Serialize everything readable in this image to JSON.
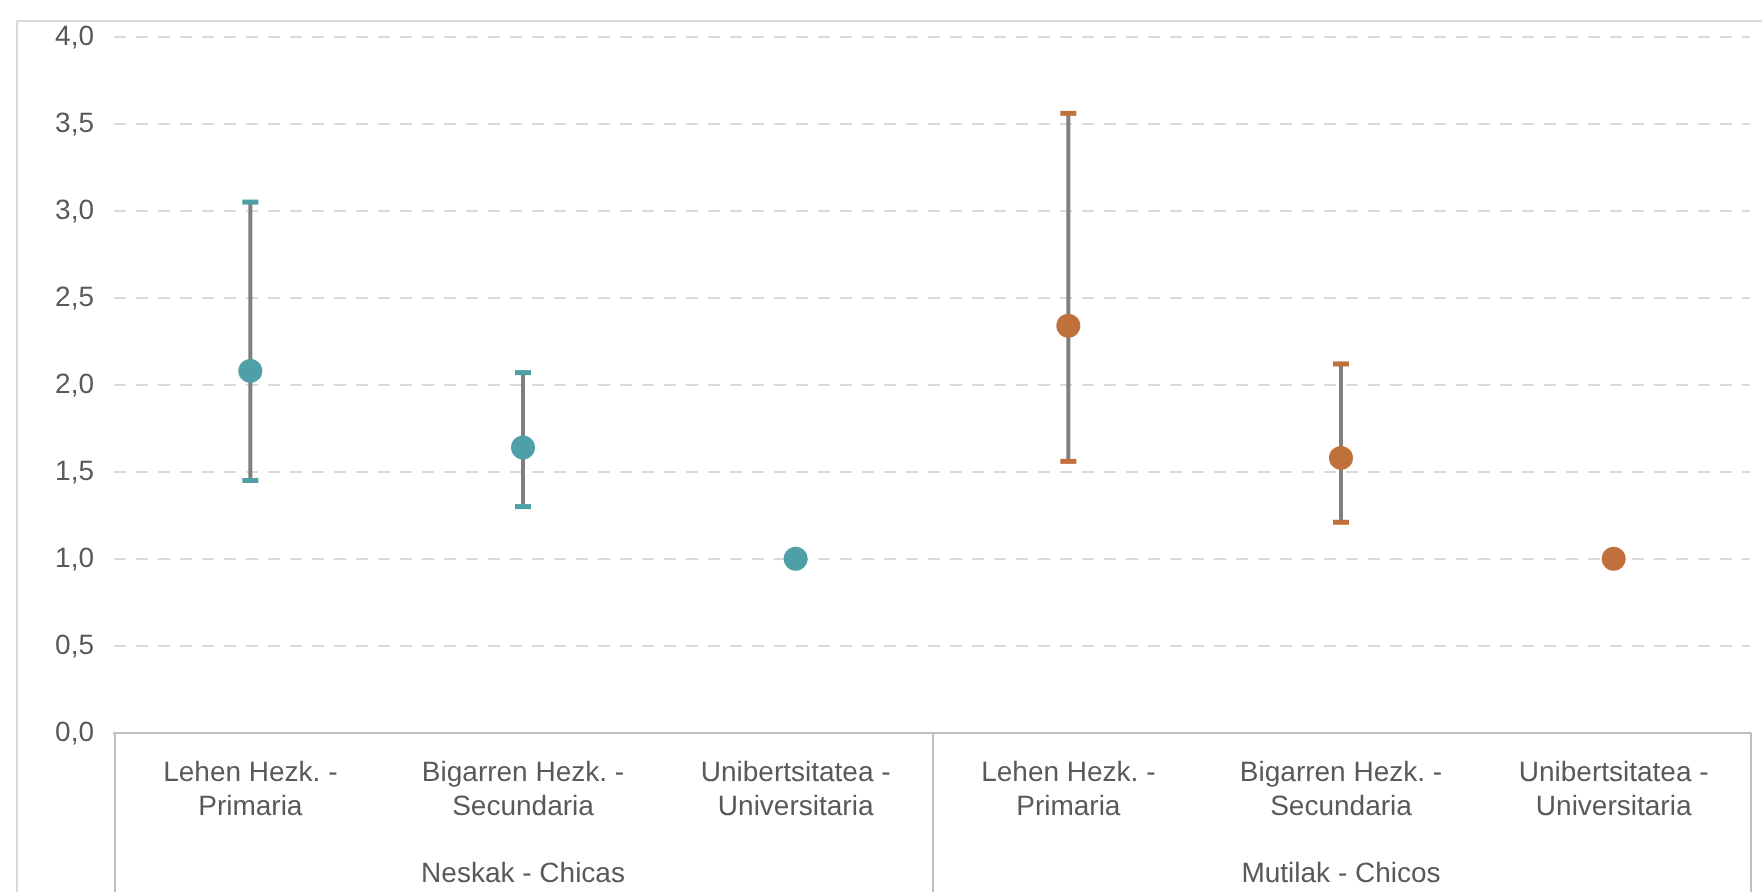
{
  "chart_data": {
    "type": "scatter",
    "categories": [
      "Lehen Hezk. - Primaria",
      "Bigarren Hezk. - Secundaria",
      "Unibertsitatea - Universitaria",
      "Lehen Hezk. - Primaria",
      "Bigarren Hezk. - Secundaria",
      "Unibertsitatea - Universitaria"
    ],
    "series": [
      {
        "color": "#4e9fa6",
        "values": [
          2.08,
          1.64,
          1.0,
          null,
          null,
          null
        ],
        "errors": [
          [
            1.45,
            3.05
          ],
          [
            1.3,
            2.07
          ],
          null,
          null,
          null,
          null
        ]
      },
      {
        "color": "#c0703a",
        "values": [
          null,
          null,
          null,
          2.34,
          1.58,
          1.0
        ],
        "errors": [
          null,
          null,
          null,
          [
            1.56,
            3.56
          ],
          [
            1.21,
            2.12
          ],
          null
        ]
      }
    ],
    "annotations": [
      "Neskak - Chicas",
      "Mutilak - Chicos"
    ],
    "ylim": [
      0,
      4
    ],
    "yticks": [
      {
        "value": 0,
        "label": "0,0"
      },
      {
        "value": 0.5,
        "label": "0,5"
      },
      {
        "value": 1,
        "label": "1,0"
      },
      {
        "value": 1.5,
        "label": "1,5"
      },
      {
        "value": 2,
        "label": "2,0"
      },
      {
        "value": 2.5,
        "label": "2,5"
      },
      {
        "value": 3,
        "label": "3,0"
      },
      {
        "value": 3.5,
        "label": "3,5"
      },
      {
        "value": 4,
        "label": "4,0"
      }
    ],
    "grid": "y",
    "legend": false,
    "marker": "circle"
  }
}
